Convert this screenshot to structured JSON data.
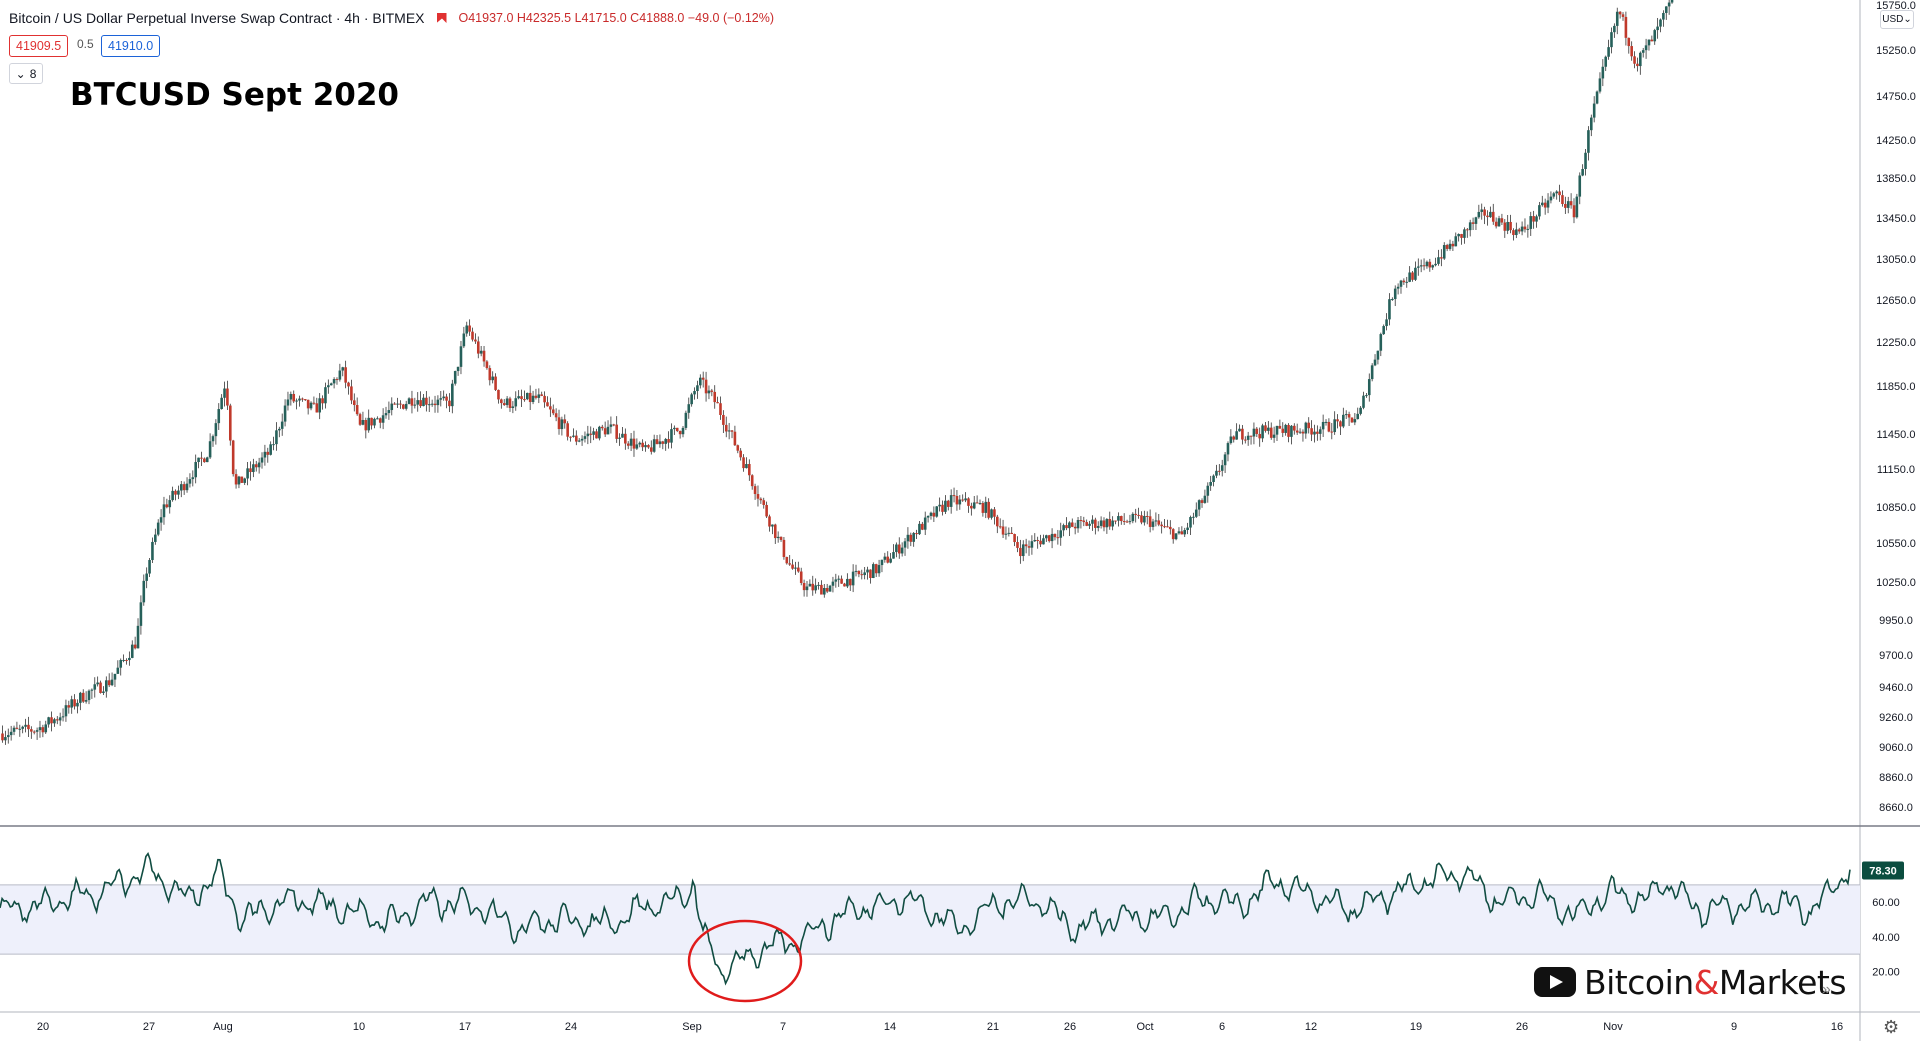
{
  "header": {
    "symbol_title": "Bitcoin / US Dollar Perpetual Inverse Swap Contract · 4h · BITMEX",
    "ohlc": "O41937.0 H42325.5 L41715.0 C41888.0 −49.0 (−0.12%)",
    "bid": "41909.5",
    "spread": "0.5",
    "ask": "41910.0",
    "indicator_count": "8"
  },
  "annotation_title": "BTCUSD Sept 2020",
  "currency_button": "USD",
  "watermark": {
    "prefix": "Bitcoin",
    "amp": "&",
    "suffix": "Markets"
  },
  "colors": {
    "up": "#26605a",
    "down": "#c0392b",
    "rsi_line": "#114d42",
    "rsi_band": "#eef0fb",
    "circle": "#e01b1b"
  },
  "chart_data": [
    {
      "type": "candlestick",
      "title": "",
      "ylabel": "USD",
      "ylim": [
        8500,
        15800
      ],
      "yticks": [
        8660.0,
        8860.0,
        9060.0,
        9260.0,
        9460.0,
        9700.0,
        9950.0,
        10250.0,
        10550.0,
        10850.0,
        11150.0,
        11450.0,
        11850.0,
        12250.0,
        12650.0,
        13050.0,
        13450.0,
        13850.0,
        14250.0,
        14750.0,
        15250.0,
        15750.0
      ],
      "xticks": [
        "20",
        "27",
        "Aug",
        "10",
        "17",
        "24",
        "Sep",
        "7",
        "14",
        "21",
        "26",
        "Oct",
        "6",
        "12",
        "19",
        "26",
        "Nov",
        "9",
        "16"
      ],
      "close_path": [
        [
          0,
          9150
        ],
        [
          0.02,
          9180
        ],
        [
          0.03,
          9250
        ],
        [
          0.045,
          9400
        ],
        [
          0.06,
          9500
        ],
        [
          0.075,
          9800
        ],
        [
          0.08,
          10300
        ],
        [
          0.09,
          10850
        ],
        [
          0.1,
          11000
        ],
        [
          0.115,
          11300
        ],
        [
          0.125,
          11900
        ],
        [
          0.13,
          11000
        ],
        [
          0.15,
          11300
        ],
        [
          0.16,
          11750
        ],
        [
          0.175,
          11650
        ],
        [
          0.19,
          12000
        ],
        [
          0.2,
          11500
        ],
        [
          0.23,
          11750
        ],
        [
          0.25,
          11700
        ],
        [
          0.26,
          12400
        ],
        [
          0.28,
          11700
        ],
        [
          0.3,
          11750
        ],
        [
          0.32,
          11400
        ],
        [
          0.34,
          11500
        ],
        [
          0.36,
          11300
        ],
        [
          0.38,
          11500
        ],
        [
          0.39,
          11900
        ],
        [
          0.4,
          11700
        ],
        [
          0.44,
          10400
        ],
        [
          0.45,
          10200
        ],
        [
          0.46,
          10200
        ],
        [
          0.49,
          10350
        ],
        [
          0.53,
          10900
        ],
        [
          0.55,
          10850
        ],
        [
          0.57,
          10500
        ],
        [
          0.6,
          10700
        ],
        [
          0.64,
          10750
        ],
        [
          0.66,
          10600
        ],
        [
          0.68,
          11100
        ],
        [
          0.69,
          11450
        ],
        [
          0.74,
          11500
        ],
        [
          0.76,
          11600
        ],
        [
          0.78,
          12800
        ],
        [
          0.8,
          13000
        ],
        [
          0.83,
          13500
        ],
        [
          0.85,
          13300
        ],
        [
          0.87,
          13700
        ],
        [
          0.88,
          13500
        ],
        [
          0.89,
          14500
        ],
        [
          0.905,
          15700
        ],
        [
          0.915,
          15100
        ],
        [
          0.925,
          15400
        ],
        [
          0.935,
          15800
        ]
      ]
    },
    {
      "type": "line",
      "title": "",
      "ylim": [
        0,
        100
      ],
      "yticks": [
        20.0,
        40.0,
        60.0
      ],
      "band": [
        30,
        70
      ],
      "last_value": "78.30",
      "path": [
        [
          0,
          55
        ],
        [
          0.03,
          60
        ],
        [
          0.06,
          68
        ],
        [
          0.08,
          80
        ],
        [
          0.1,
          62
        ],
        [
          0.12,
          75
        ],
        [
          0.13,
          50
        ],
        [
          0.16,
          62
        ],
        [
          0.19,
          55
        ],
        [
          0.21,
          48
        ],
        [
          0.23,
          60
        ],
        [
          0.26,
          58
        ],
        [
          0.28,
          45
        ],
        [
          0.3,
          50
        ],
        [
          0.33,
          48
        ],
        [
          0.35,
          58
        ],
        [
          0.37,
          62
        ],
        [
          0.375,
          72
        ],
        [
          0.38,
          40
        ],
        [
          0.39,
          20
        ],
        [
          0.41,
          32
        ],
        [
          0.43,
          38
        ],
        [
          0.46,
          55
        ],
        [
          0.49,
          62
        ],
        [
          0.52,
          45
        ],
        [
          0.54,
          60
        ],
        [
          0.56,
          62
        ],
        [
          0.58,
          45
        ],
        [
          0.61,
          52
        ],
        [
          0.63,
          50
        ],
        [
          0.65,
          62
        ],
        [
          0.67,
          58
        ],
        [
          0.69,
          72
        ],
        [
          0.73,
          55
        ],
        [
          0.77,
          72
        ],
        [
          0.79,
          78
        ],
        [
          0.81,
          60
        ],
        [
          0.83,
          65
        ],
        [
          0.85,
          52
        ],
        [
          0.87,
          66
        ],
        [
          0.89,
          62
        ],
        [
          0.9,
          72
        ],
        [
          0.92,
          55
        ],
        [
          0.96,
          60
        ],
        [
          0.98,
          55
        ],
        [
          1,
          80
        ]
      ]
    }
  ]
}
